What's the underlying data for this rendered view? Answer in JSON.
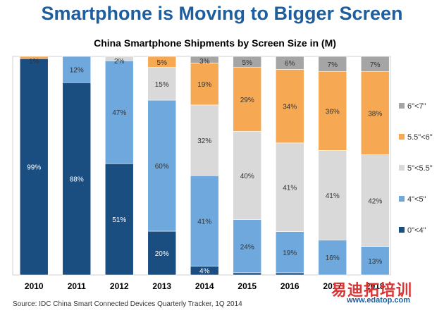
{
  "headline": "Smartphone is Moving to Bigger Screen",
  "source": "Source: IDC China Smart Connected Devices Quarterly Tracker, 1Q 2014",
  "watermark": {
    "text": "易迪拓培训",
    "url": "www.edatop.com"
  },
  "colors": {
    "0-4": "#1a4d80",
    "4-5": "#6fa8dc",
    "5-5.5": "#d9d9d9",
    "5.5-6": "#f6a852",
    "6-7": "#a5a5a5",
    "headline": "#1f5e9e"
  },
  "chart_data": {
    "type": "bar",
    "stacked": true,
    "title": "China Smartphone Shipments by Screen Size in (M)",
    "categories": [
      "2010",
      "2011",
      "2012",
      "2013",
      "2014",
      "2015",
      "2016",
      "2017",
      "2018"
    ],
    "ylim": [
      0,
      100
    ],
    "legend_position": "right",
    "series": [
      {
        "name": "0\"<4\"",
        "key": "0-4",
        "values": [
          99,
          88,
          51,
          20,
          4,
          1,
          1,
          0,
          0
        ],
        "labels": [
          "99%",
          "88%",
          "51%",
          "20%",
          "4%",
          "1%",
          "1%",
          "",
          ""
        ]
      },
      {
        "name": "4\"<5\"",
        "key": "4-5",
        "values": [
          0,
          12,
          47,
          60,
          41,
          24,
          19,
          16,
          13
        ],
        "labels": [
          "",
          "12%",
          "47%",
          "60%",
          "41%",
          "24%",
          "19%",
          "16%",
          "13%"
        ]
      },
      {
        "name": "5\"<5.5\"",
        "key": "5-5.5",
        "values": [
          0,
          0,
          2,
          15,
          32,
          40,
          41,
          41,
          42
        ],
        "labels": [
          "",
          "",
          "2%",
          "15%",
          "32%",
          "40%",
          "41%",
          "41%",
          "42%"
        ]
      },
      {
        "name": "5.5\"<6\"",
        "key": "5.5-6",
        "values": [
          1,
          0,
          0,
          5,
          19,
          29,
          34,
          36,
          38
        ],
        "labels": [
          "1%",
          "",
          "",
          "5%",
          "19%",
          "29%",
          "34%",
          "36%",
          "38%"
        ]
      },
      {
        "name": "6\"<7\"",
        "key": "6-7",
        "values": [
          0,
          0,
          0,
          0,
          3,
          5,
          6,
          7,
          7
        ],
        "labels": [
          "",
          "",
          "",
          "",
          "3%",
          "5%",
          "6%",
          "7%",
          "7%"
        ]
      }
    ],
    "legend": [
      "6\"<7\"",
      "5.5\"<6\"",
      "5\"<5.5\"",
      "4\"<5\"",
      "0\"<4\""
    ]
  }
}
